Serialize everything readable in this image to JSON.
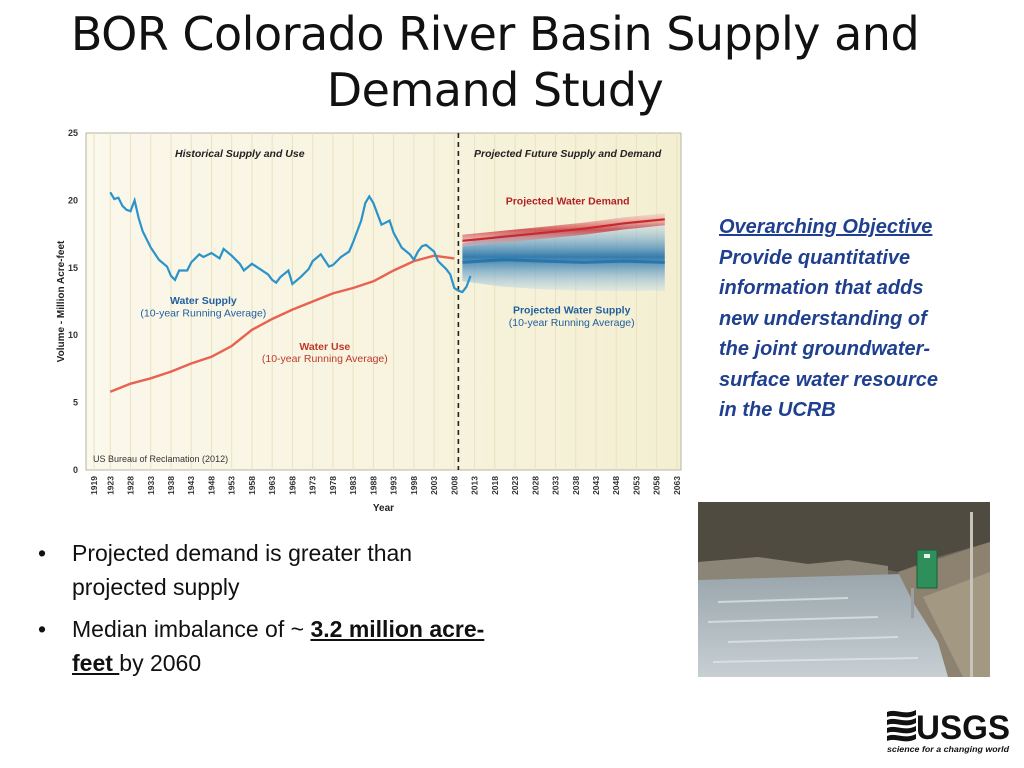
{
  "title": "BOR Colorado River Basin Supply and Demand Study",
  "chart_data": {
    "type": "line",
    "ylabel": "Volume - Million Acre-feet",
    "xlabel": "Year",
    "ylim": [
      0,
      25
    ],
    "y_ticks": [
      "0",
      "5",
      "10",
      "15",
      "20",
      "25"
    ],
    "x_ticks": [
      "1919",
      "1923",
      "1928",
      "1933",
      "1938",
      "1943",
      "1948",
      "1953",
      "1958",
      "1963",
      "1968",
      "1973",
      "1978",
      "1983",
      "1988",
      "1993",
      "1998",
      "2003",
      "2008",
      "2013",
      "2018",
      "2023",
      "2028",
      "2033",
      "2038",
      "2043",
      "2048",
      "2053",
      "2058",
      "2063"
    ],
    "xlim": [
      1917,
      2064
    ],
    "divider_year": 2009,
    "grid": true,
    "section_labels": [
      "Historical Supply and Use",
      "Projected Future Supply and Demand"
    ],
    "source_note": "US Bureau of Reclamation (2012)",
    "series": [
      {
        "name": "Water Supply (10-year Running Average)",
        "label_line1": "Water Supply",
        "label_line2": "(10-year Running Average)",
        "color": "#2a93c9",
        "x": [
          1923,
          1924,
          1925,
          1926,
          1927,
          1928,
          1929,
          1930,
          1931,
          1933,
          1935,
          1937,
          1938,
          1939,
          1940,
          1942,
          1943,
          1945,
          1946,
          1948,
          1950,
          1951,
          1953,
          1955,
          1956,
          1958,
          1960,
          1962,
          1963,
          1964,
          1965,
          1967,
          1968,
          1970,
          1972,
          1973,
          1975,
          1977,
          1978,
          1980,
          1982,
          1983,
          1985,
          1986,
          1987,
          1988,
          1990,
          1992,
          1993,
          1995,
          1997,
          1998,
          1999,
          2000,
          2001,
          2003,
          2004,
          2006,
          2007,
          2008,
          2009,
          2010,
          2011,
          2012
        ],
        "y": [
          20.6,
          20.1,
          20.2,
          19.6,
          19.3,
          19.2,
          20.0,
          18.7,
          17.7,
          16.5,
          15.6,
          15.1,
          14.4,
          14.1,
          14.8,
          14.8,
          15.4,
          16.0,
          15.8,
          16.1,
          15.7,
          16.4,
          15.9,
          15.3,
          14.8,
          15.3,
          14.9,
          14.5,
          14.1,
          13.9,
          14.3,
          14.8,
          13.8,
          14.3,
          14.9,
          15.5,
          16.0,
          15.1,
          15.2,
          15.8,
          16.2,
          16.9,
          18.5,
          19.8,
          20.3,
          19.8,
          18.2,
          18.5,
          17.6,
          16.5,
          16.0,
          15.6,
          16.2,
          16.6,
          16.7,
          16.2,
          15.5,
          14.9,
          14.5,
          13.5,
          13.3,
          13.2,
          13.6,
          14.4
        ]
      },
      {
        "name": "Water Use (10-year Running Average)",
        "label_line1": "Water Use",
        "label_line2": "(10-year Running Average)",
        "color": "#e8624f",
        "x": [
          1923,
          1928,
          1933,
          1938,
          1943,
          1948,
          1953,
          1958,
          1963,
          1968,
          1973,
          1978,
          1983,
          1988,
          1993,
          1998,
          2003,
          2008
        ],
        "y": [
          5.8,
          6.4,
          6.8,
          7.3,
          7.9,
          8.4,
          9.2,
          10.4,
          11.2,
          11.9,
          12.5,
          13.1,
          13.5,
          14.0,
          14.8,
          15.5,
          15.9,
          15.7
        ]
      },
      {
        "name": "Projected Water Demand",
        "label_line1": "Projected Water Demand",
        "color": "#c8282e",
        "x": [
          2010,
          2020,
          2030,
          2040,
          2050,
          2060
        ],
        "y": [
          17.0,
          17.3,
          17.6,
          17.9,
          18.3,
          18.6
        ]
      },
      {
        "name": "Projected Water Supply (10-year Running Average)",
        "label_line1": "Projected Water Supply",
        "label_line2": "(10-year Running Average)",
        "color": "#1f6fa8",
        "x": [
          2010,
          2020,
          2030,
          2040,
          2050,
          2060
        ],
        "y": [
          15.4,
          15.6,
          15.5,
          15.4,
          15.5,
          15.4
        ],
        "band_low": [
          14.0,
          13.6,
          13.4,
          13.3,
          13.3,
          13.3
        ],
        "band_high": [
          16.8,
          17.5,
          17.8,
          18.0,
          18.2,
          18.3
        ]
      }
    ]
  },
  "objective": {
    "heading": "Overarching Objective",
    "lines": [
      "Provide quantitative",
      "information that adds",
      "new understanding of",
      "the joint groundwater-",
      "surface water resource",
      "in the UCRB"
    ]
  },
  "bullets": [
    {
      "text": "Projected demand is greater than projected supply"
    },
    {
      "text": "Median imbalance of ~ ",
      "emph": "3.2 million acre-feet ",
      "tail": "by 2060"
    }
  ],
  "bullet_symbol": "•",
  "logo": {
    "word": "USGS",
    "tagline": "science for a changing world"
  }
}
